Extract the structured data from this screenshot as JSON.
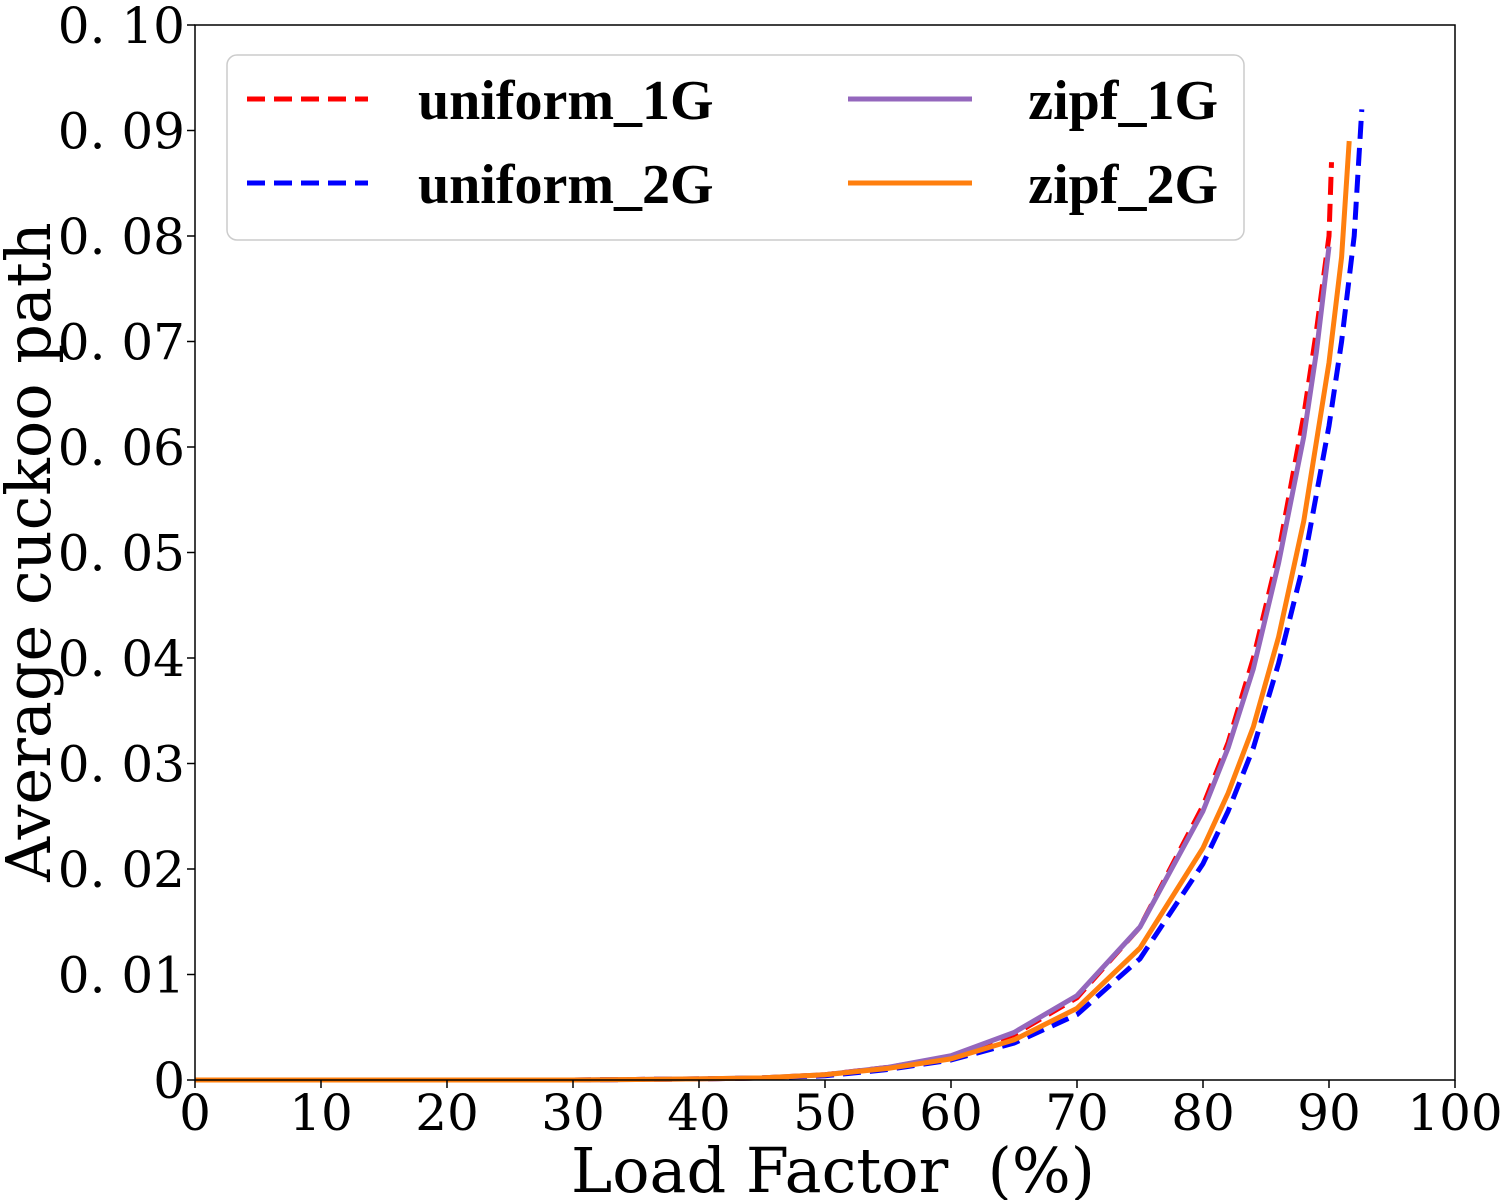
{
  "chart_data": {
    "type": "line",
    "xlabel": "Load Factor  (%)",
    "ylabel": "Average cuckoo path",
    "xlim": [
      0,
      100
    ],
    "ylim": [
      0,
      0.1
    ],
    "xticks": [
      "0",
      "10",
      "20",
      "30",
      "40",
      "50",
      "60",
      "70",
      "80",
      "90",
      "100"
    ],
    "yticks": [
      "0",
      "0. 01",
      "0. 02",
      "0. 03",
      "0. 04",
      "0. 05",
      "0. 06",
      "0. 07",
      "0. 08",
      "0. 09",
      "0. 10"
    ],
    "grid": false,
    "legend_position": "top",
    "series": [
      {
        "name": "uniform_1G",
        "color": "#ff0000",
        "style": "dashed",
        "x": [
          0,
          10,
          20,
          30,
          40,
          45,
          50,
          55,
          60,
          65,
          70,
          75,
          80,
          82,
          84,
          86,
          88,
          89,
          90,
          90.2
        ],
        "y": [
          0,
          0,
          0,
          0,
          0.0001,
          0.0002,
          0.0005,
          0.0012,
          0.0022,
          0.0043,
          0.0078,
          0.0145,
          0.026,
          0.032,
          0.04,
          0.05,
          0.063,
          0.071,
          0.08,
          0.087
        ]
      },
      {
        "name": "uniform_2G",
        "color": "#0000ff",
        "style": "dashed",
        "x": [
          0,
          10,
          20,
          30,
          40,
          45,
          50,
          55,
          60,
          65,
          70,
          75,
          80,
          82,
          84,
          86,
          88,
          90,
          91,
          92,
          92.6
        ],
        "y": [
          0,
          0,
          0,
          0,
          0.0001,
          0.0002,
          0.0004,
          0.001,
          0.0019,
          0.0035,
          0.0062,
          0.0115,
          0.0205,
          0.0255,
          0.0315,
          0.0395,
          0.049,
          0.062,
          0.07,
          0.08,
          0.092
        ]
      },
      {
        "name": "zipf_1G",
        "color": "#9467bd",
        "style": "solid",
        "x": [
          0,
          10,
          20,
          30,
          40,
          45,
          50,
          55,
          60,
          65,
          70,
          75,
          80,
          82,
          84,
          86,
          88,
          89,
          90
        ],
        "y": [
          0,
          0,
          0,
          0,
          0.0001,
          0.0002,
          0.0005,
          0.0012,
          0.0023,
          0.0045,
          0.008,
          0.0145,
          0.0255,
          0.0315,
          0.039,
          0.049,
          0.061,
          0.069,
          0.079
        ]
      },
      {
        "name": "zipf_2G",
        "color": "#ff7f0e",
        "style": "solid",
        "x": [
          0,
          10,
          20,
          30,
          40,
          45,
          50,
          55,
          60,
          65,
          70,
          75,
          80,
          82,
          84,
          86,
          88,
          90,
          91,
          91.6
        ],
        "y": [
          0,
          0,
          0,
          0,
          0.0001,
          0.0002,
          0.0005,
          0.0011,
          0.002,
          0.0038,
          0.0068,
          0.0125,
          0.022,
          0.0272,
          0.0335,
          0.042,
          0.053,
          0.068,
          0.078,
          0.089
        ]
      }
    ]
  }
}
